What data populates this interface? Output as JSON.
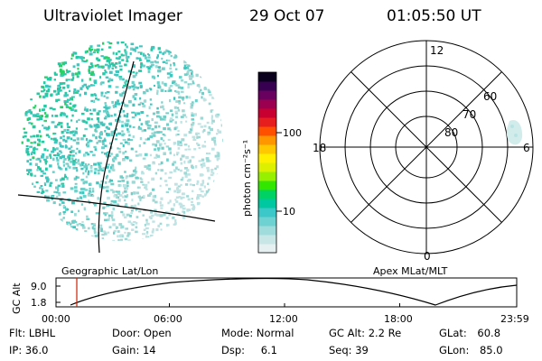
{
  "header": {
    "title": "Ultraviolet Imager",
    "date": "29 Oct 07",
    "time": "01:05:50 UT"
  },
  "geo_panel": {
    "label": "Geographic Lat/Lon"
  },
  "apex_panel": {
    "label": "Apex MLat/MLT",
    "mlt_labels": {
      "top": "12",
      "left": "18",
      "right": "6",
      "bottom": "0"
    },
    "lat_labels": [
      "60",
      "70",
      "80"
    ]
  },
  "colorbar": {
    "unit_label": "photon cm⁻²s⁻¹",
    "ticks": [
      {
        "label": "100",
        "value": 100
      },
      {
        "label": "10",
        "value": 10
      }
    ],
    "colors": [
      "#e6f0f0",
      "#c8e6e6",
      "#a0dcdc",
      "#6fd2d2",
      "#3cc8c8",
      "#00c8a0",
      "#00d264",
      "#32e600",
      "#96f000",
      "#dcf000",
      "#fff000",
      "#ffc800",
      "#ff9600",
      "#ff5000",
      "#e61e1e",
      "#c80032",
      "#9b0050",
      "#690060",
      "#370050",
      "#0a001e"
    ]
  },
  "timeline": {
    "axis_label": "GC Alt",
    "y_ticks": [
      "9.0",
      "1.8"
    ],
    "x_ticks": [
      "00:00",
      "06:00",
      "12:00",
      "18:00",
      "23:59"
    ],
    "current_time_fraction": 0.045,
    "marker_color": "#cc2200"
  },
  "info": {
    "flt": {
      "label": "Flt:",
      "value": "LBHL"
    },
    "ip": {
      "label": "IP:",
      "value": "36.0"
    },
    "door": {
      "label": "Door:",
      "value": "Open"
    },
    "gain": {
      "label": "Gain:",
      "value": "14"
    },
    "mode": {
      "label": "Mode:",
      "value": "Normal"
    },
    "dsp": {
      "label": "Dsp:",
      "value": "6.1"
    },
    "gcalt": {
      "label": "GC Alt:",
      "value": "2.2 Re"
    },
    "seq": {
      "label": "Seq:",
      "value": "39"
    },
    "glat": {
      "label": "GLat:",
      "value": "60.8"
    },
    "glon": {
      "label": "GLon:",
      "value": "85.0"
    }
  },
  "colors": {
    "dot_colors": [
      "#bfe3e3",
      "#9ed9d6",
      "#6fcfc9",
      "#3fc6bf",
      "#26c9a3",
      "#28d165"
    ]
  }
}
